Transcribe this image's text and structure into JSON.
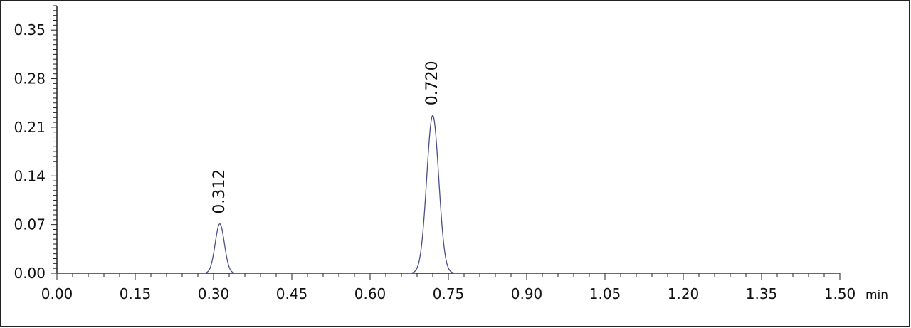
{
  "chart_data": {
    "type": "line",
    "title": "",
    "xlabel": "",
    "ylabel": "",
    "x_unit": "min",
    "xlim": [
      0.0,
      1.5
    ],
    "ylim": [
      0.0,
      0.385
    ],
    "x_ticks": [
      "0.00",
      "0.15",
      "0.30",
      "0.45",
      "0.60",
      "0.75",
      "0.90",
      "1.05",
      "1.20",
      "1.35",
      "1.50"
    ],
    "y_ticks": [
      "0.00",
      "0.07",
      "0.14",
      "0.21",
      "0.28",
      "0.35"
    ],
    "grid": false,
    "legend": "none",
    "line_color": "#4a4f8a",
    "baseline": 0.0,
    "series": [
      {
        "peaks": [
          {
            "label": "0.312",
            "retention_time": 0.312,
            "height": 0.071,
            "width": 0.0088
          },
          {
            "label": "0.720",
            "retention_time": 0.72,
            "height": 0.227,
            "width": 0.0115
          }
        ]
      }
    ]
  }
}
